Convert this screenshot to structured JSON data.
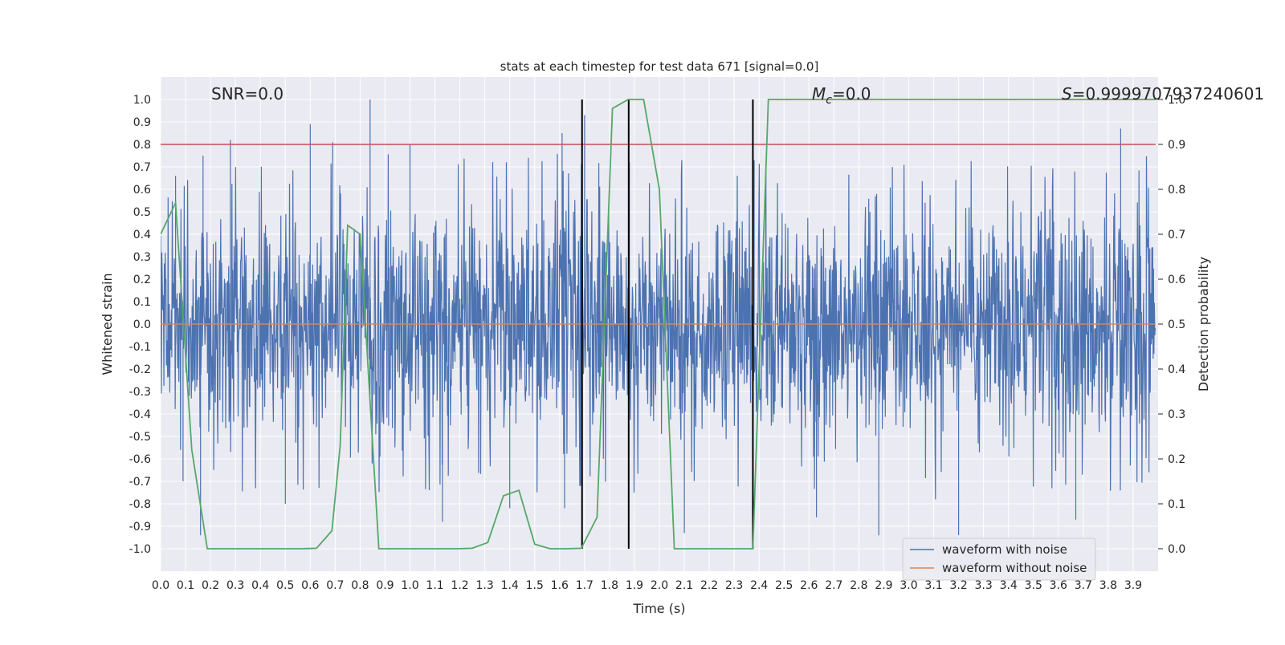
{
  "chart_data": {
    "type": "line",
    "title": "stats at each timestep for test data 671 [signal=0.0]",
    "xlabel": "Time (s)",
    "ylabel_left": "Whitened strain",
    "ylabel_right": "Detection probability",
    "xlim": [
      0.0,
      4.0
    ],
    "ylim_left": [
      -1.1,
      1.1
    ],
    "ylim_right": [
      -0.05,
      1.05
    ],
    "xticks": [
      "0.0",
      "0.1",
      "0.2",
      "0.3",
      "0.4",
      "0.5",
      "0.6",
      "0.7",
      "0.8",
      "0.9",
      "1.0",
      "1.1",
      "1.2",
      "1.3",
      "1.4",
      "1.5",
      "1.6",
      "1.7",
      "1.8",
      "1.9",
      "2.0",
      "2.1",
      "2.2",
      "2.3",
      "2.4",
      "2.5",
      "2.6",
      "2.7",
      "2.8",
      "2.9",
      "3.0",
      "3.1",
      "3.2",
      "3.3",
      "3.4",
      "3.5",
      "3.6",
      "3.7",
      "3.8",
      "3.9"
    ],
    "yticks_left": [
      "1.0",
      "0.9",
      "0.8",
      "0.7",
      "0.6",
      "0.5",
      "0.4",
      "0.3",
      "0.2",
      "0.1",
      "0.0",
      "-0.1",
      "-0.2",
      "-0.3",
      "-0.4",
      "-0.5",
      "-0.6",
      "-0.7",
      "-0.8",
      "-0.9",
      "-1.0"
    ],
    "yticks_right": [
      "1.0",
      "0.9",
      "0.8",
      "0.7",
      "0.6",
      "0.5",
      "0.4",
      "0.3",
      "0.2",
      "0.1",
      "0.0"
    ],
    "grid": true,
    "legend_position": "lower-right",
    "annotations": {
      "snr": "SNR=0.0",
      "mc_symbol": "M",
      "mc_sub": "c",
      "mc_value": "=0.0",
      "s_symbol": "S",
      "s_value": "=0.9999707937240601"
    },
    "threshold": {
      "axis": "left",
      "y": 0.8,
      "color": "#c44e52"
    },
    "vertical_lines": {
      "x": [
        1.69,
        1.877,
        2.375
      ],
      "color": "#000000"
    },
    "series": [
      {
        "name": "waveform with noise",
        "axis": "left",
        "color": "#4c72b0",
        "style": "dense random noise, peak amplitude about 1.0",
        "peaks": [
          [
            0.06,
            0.66
          ],
          [
            0.17,
            0.75
          ],
          [
            0.28,
            0.82
          ],
          [
            0.6,
            0.89
          ],
          [
            0.69,
            0.81
          ],
          [
            0.84,
            1.0
          ],
          [
            1.0,
            0.8
          ],
          [
            1.61,
            0.85
          ],
          [
            1.7,
            0.93
          ],
          [
            1.88,
            0.72
          ],
          [
            2.38,
            0.73
          ],
          [
            3.85,
            0.87
          ]
        ],
        "troughs": [
          [
            0.09,
            -0.7
          ],
          [
            0.16,
            -0.94
          ],
          [
            0.5,
            -0.8
          ],
          [
            1.13,
            -0.88
          ],
          [
            1.4,
            -0.82
          ],
          [
            1.62,
            -0.82
          ],
          [
            2.1,
            -0.93
          ],
          [
            2.63,
            -0.86
          ],
          [
            2.88,
            -0.94
          ],
          [
            3.2,
            -0.94
          ],
          [
            3.67,
            -0.87
          ]
        ]
      },
      {
        "name": "waveform without noise",
        "axis": "left",
        "color": "#dd8452",
        "x": [
          0.0,
          3.99
        ],
        "y": [
          0.0,
          0.0
        ]
      },
      {
        "name": "detection probability",
        "axis": "right",
        "color": "#55a868",
        "x": [
          0.0,
          0.06,
          0.125,
          0.187,
          0.25,
          0.312,
          0.375,
          0.437,
          0.5,
          0.562,
          0.625,
          0.687,
          0.72,
          0.75,
          0.8,
          0.875,
          0.937,
          1.0,
          1.06,
          1.125,
          1.187,
          1.25,
          1.312,
          1.375,
          1.437,
          1.5,
          1.562,
          1.625,
          1.687,
          1.75,
          1.812,
          1.875,
          1.937,
          2.0,
          2.06,
          2.125,
          2.187,
          2.25,
          2.312,
          2.375,
          2.437,
          2.5,
          2.562,
          2.625,
          2.687,
          2.75,
          2.812,
          2.875,
          2.937,
          3.0,
          3.06,
          3.125,
          3.187,
          3.25,
          3.312,
          3.375,
          3.437,
          3.5,
          3.562,
          3.625,
          3.687,
          3.75,
          3.812,
          3.875,
          3.937,
          3.99
        ],
        "y": [
          0.7,
          0.77,
          0.22,
          0.0,
          0.0,
          0.0,
          0.0,
          0.0,
          0.0,
          0.0,
          0.001,
          0.04,
          0.23,
          0.72,
          0.7,
          0.0,
          0.0,
          0.0,
          0.0,
          0.0,
          0.0,
          0.001,
          0.014,
          0.118,
          0.13,
          0.01,
          0.0,
          0.0,
          0.001,
          0.07,
          0.98,
          1.0,
          1.0,
          0.8,
          0.0,
          0.0,
          0.0,
          0.0,
          0.0,
          0.0,
          1.0,
          1.0,
          1.0,
          1.0,
          1.0,
          1.0,
          1.0,
          1.0,
          1.0,
          1.0,
          1.0,
          1.0,
          1.0,
          1.0,
          1.0,
          1.0,
          1.0,
          1.0,
          1.0,
          1.0,
          1.0,
          1.0,
          1.0,
          1.0,
          1.0,
          1.0
        ]
      }
    ],
    "legend_entries": [
      {
        "label": "waveform with noise",
        "color": "#4c72b0"
      },
      {
        "label": "waveform without noise",
        "color": "#dd8452"
      }
    ],
    "colors": {
      "axes_background": "#eaeaf2",
      "grid": "#ffffff"
    }
  }
}
